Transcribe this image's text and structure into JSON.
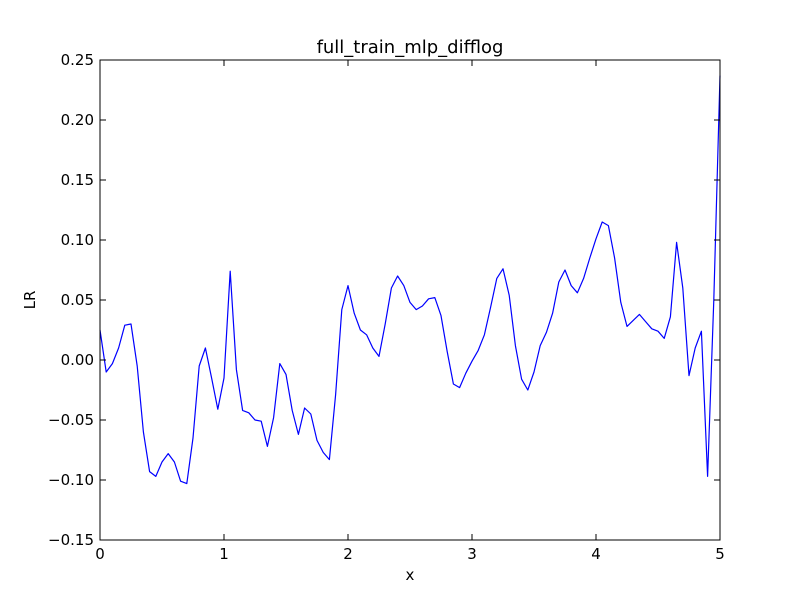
{
  "chart_data": {
    "type": "line",
    "title": "full_train_mlp_difflog",
    "xlabel": "x",
    "ylabel": "LR",
    "xlim": [
      0,
      5
    ],
    "ylim": [
      -0.15,
      0.25
    ],
    "grid": false,
    "xticks": [
      0,
      1,
      2,
      3,
      4,
      5
    ],
    "xtick_labels": [
      "0",
      "1",
      "2",
      "3",
      "4",
      "5"
    ],
    "yticks": [
      -0.15,
      -0.1,
      -0.05,
      0.0,
      0.05,
      0.1,
      0.15,
      0.2,
      0.25
    ],
    "ytick_labels": [
      "−0.15",
      "−0.10",
      "−0.05",
      "0.00",
      "0.05",
      "0.10",
      "0.15",
      "0.20",
      "0.25"
    ],
    "series": [
      {
        "color": "#0000ff",
        "x": [
          0.0,
          0.05,
          0.1,
          0.15,
          0.2,
          0.25,
          0.3,
          0.35,
          0.4,
          0.45,
          0.5,
          0.55,
          0.6,
          0.65,
          0.7,
          0.75,
          0.8,
          0.85,
          0.9,
          0.95,
          1.0,
          1.05,
          1.1,
          1.15,
          1.2,
          1.25,
          1.3,
          1.35,
          1.4,
          1.45,
          1.5,
          1.55,
          1.6,
          1.65,
          1.7,
          1.75,
          1.8,
          1.85,
          1.9,
          1.95,
          2.0,
          2.05,
          2.1,
          2.15,
          2.2,
          2.25,
          2.3,
          2.35,
          2.4,
          2.45,
          2.5,
          2.55,
          2.6,
          2.65,
          2.7,
          2.75,
          2.8,
          2.85,
          2.9,
          2.95,
          3.0,
          3.05,
          3.1,
          3.15,
          3.2,
          3.25,
          3.3,
          3.35,
          3.4,
          3.45,
          3.5,
          3.55,
          3.6,
          3.65,
          3.7,
          3.75,
          3.8,
          3.85,
          3.9,
          3.95,
          4.0,
          4.05,
          4.1,
          4.15,
          4.2,
          4.25,
          4.3,
          4.35,
          4.4,
          4.45,
          4.5,
          4.55,
          4.6,
          4.65,
          4.7,
          4.75,
          4.8,
          4.85,
          4.9,
          4.95,
          5.0
        ],
        "y": [
          0.025,
          -0.01,
          -0.003,
          0.01,
          0.029,
          0.03,
          -0.005,
          -0.06,
          -0.093,
          -0.097,
          -0.085,
          -0.078,
          -0.085,
          -0.101,
          -0.103,
          -0.065,
          -0.005,
          0.01,
          -0.015,
          -0.041,
          -0.015,
          0.074,
          -0.008,
          -0.042,
          -0.044,
          -0.05,
          -0.051,
          -0.072,
          -0.048,
          -0.003,
          -0.012,
          -0.042,
          -0.062,
          -0.04,
          -0.045,
          -0.067,
          -0.077,
          -0.083,
          -0.029,
          0.042,
          0.062,
          0.039,
          0.025,
          0.021,
          0.01,
          0.003,
          0.03,
          0.06,
          0.07,
          0.062,
          0.048,
          0.042,
          0.045,
          0.051,
          0.052,
          0.037,
          0.007,
          -0.02,
          -0.023,
          -0.011,
          -0.001,
          0.008,
          0.021,
          0.044,
          0.068,
          0.076,
          0.054,
          0.012,
          -0.016,
          -0.025,
          -0.01,
          0.012,
          0.023,
          0.039,
          0.065,
          0.075,
          0.062,
          0.056,
          0.068,
          0.085,
          0.101,
          0.115,
          0.112,
          0.085,
          0.048,
          0.028,
          0.033,
          0.038,
          0.032,
          0.026,
          0.024,
          0.018,
          0.036,
          0.098,
          0.06,
          -0.013,
          0.01,
          0.024,
          -0.097,
          0.05,
          0.237
        ]
      }
    ]
  }
}
